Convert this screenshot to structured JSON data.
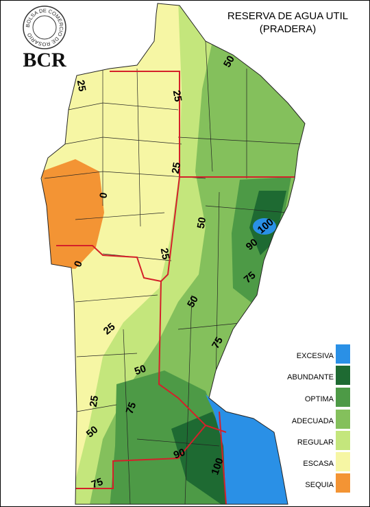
{
  "header": {
    "title_line1": "RESERVA DE AGUA UTIL",
    "title_line2": "(PRADERA)"
  },
  "logo": {
    "ring_text": "BOLSA DE COMERCIO DE ROSARIO",
    "acronym": "BCR"
  },
  "legend": {
    "items": [
      {
        "label": "EXCESIVA",
        "color": "#2a90e6"
      },
      {
        "label": "ABUNDANTE",
        "color": "#1e6a32"
      },
      {
        "label": "OPTIMA",
        "color": "#4d9a46"
      },
      {
        "label": "ADECUADA",
        "color": "#84c05c"
      },
      {
        "label": "REGULAR",
        "color": "#c4e67c"
      },
      {
        "label": "ESCASA",
        "color": "#f6f6a4"
      },
      {
        "label": "SEQUIA",
        "color": "#f39434"
      }
    ]
  },
  "map": {
    "contour_labels": [
      "50",
      "25",
      "25",
      "25",
      "0",
      "50",
      "100",
      "90",
      "25",
      "0",
      "75",
      "50",
      "25",
      "75",
      "50",
      "75",
      "25",
      "50",
      "90",
      "100",
      "75"
    ]
  }
}
